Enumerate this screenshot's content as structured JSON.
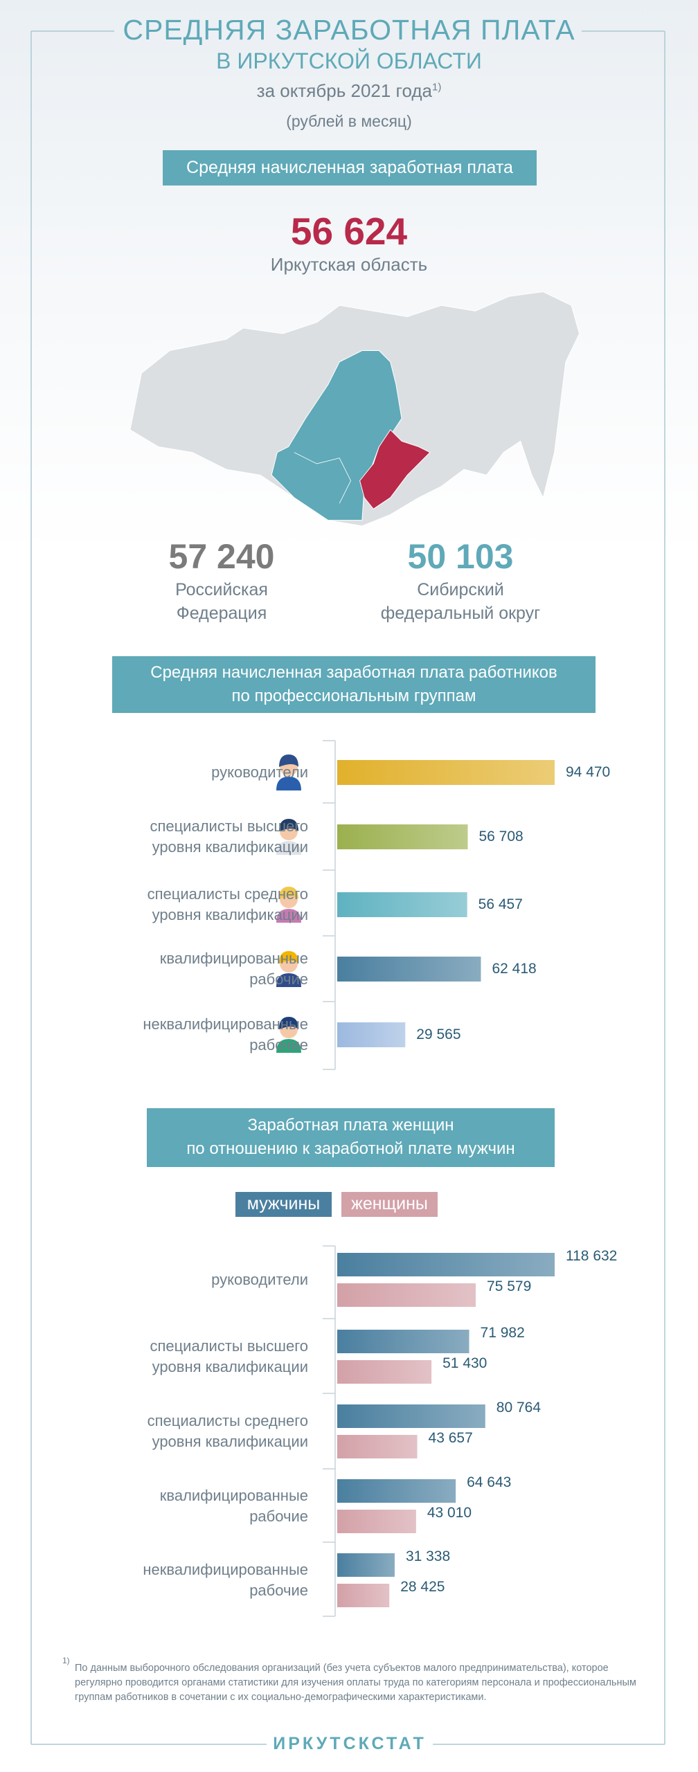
{
  "header": {
    "title_line1": "СРЕДНЯЯ ЗАРАБОТНАЯ ПЛАТА",
    "title_line2": "В ИРКУТСКОЙ ОБЛАСТИ",
    "period": "за октябрь 2021 года",
    "footnote_mark": "1)",
    "units": "(рублей в месяц)"
  },
  "summary": {
    "banner": "Средняя начисленная заработная плата",
    "region_value": "56 624",
    "region_name": "Иркутская область",
    "comparisons": [
      {
        "value": "57 240",
        "label": "Российская\nФедерация",
        "color": "#7b7b7b"
      },
      {
        "value": "50 103",
        "label": "Сибирский\nфедеральный округ",
        "color": "#5fa9b8"
      }
    ]
  },
  "chart_data": [
    {
      "type": "bar",
      "title": "Средняя начисленная заработная плата работников\nпо профессиональным группам",
      "categories": [
        "руководители",
        "специалисты высшего\nуровня квалификации",
        "специалисты среднего\nуровня квалификации",
        "квалифицированные\nрабочие",
        "неквалифицированные\nрабочие"
      ],
      "values": [
        94470,
        56708,
        56457,
        62418,
        29565
      ],
      "value_labels": [
        "94 470",
        "56 708",
        "56 457",
        "62 418",
        "29 565"
      ],
      "colors": [
        "#e1b12c",
        "#9bb04e",
        "#5fb2c1",
        "#4a7f9f",
        "#9cb9df"
      ]
    },
    {
      "type": "bar",
      "title": "Заработная плата женщин\nпо отношению к заработной плате мужчин",
      "categories": [
        "руководители",
        "специалисты высшего\nуровня квалификации",
        "специалисты среднего\nуровня квалификации",
        "квалифицированные\nрабочие",
        "неквалифицированные\nрабочие"
      ],
      "series": [
        {
          "name": "мужчины",
          "color": "#4a7f9f",
          "values": [
            118632,
            71982,
            80764,
            64643,
            31338
          ],
          "value_labels": [
            "118 632",
            "71 982",
            "80 764",
            "64 643",
            "31 338"
          ]
        },
        {
          "name": "женщины",
          "color": "#d3a1a8",
          "values": [
            75579,
            51430,
            43657,
            43010,
            28425
          ],
          "value_labels": [
            "75 579",
            "51 430",
            "43 657",
            "43 010",
            "28 425"
          ]
        }
      ]
    }
  ],
  "footnote": {
    "mark": "1)",
    "text": "По данным выборочного обследования организаций (без учета субъектов малого предпринимательства), которое регулярно проводится органами статистики для изучения оплаты труда по категориям персонала и профессиональным группам работников в сочетании с их социально-демографическими характеристиками."
  },
  "footer": {
    "brand": "ИРКУТСКСТАТ"
  }
}
